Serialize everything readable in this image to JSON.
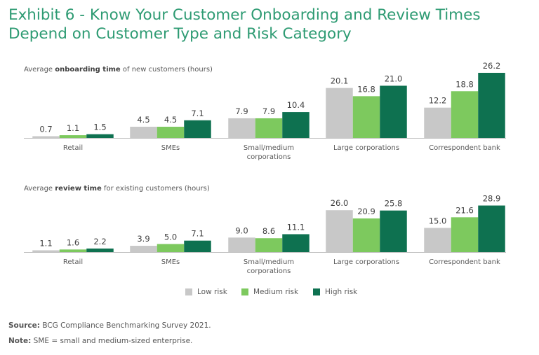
{
  "title": {
    "line1": "Exhibit 6 - Know Your Customer Onboarding and Review Times",
    "line2": "Depend on Customer Type and Risk Category"
  },
  "colors": {
    "title": "#2e9b73",
    "low_risk": "#c8c8c8",
    "medium_risk": "#7dc95e",
    "high_risk": "#0e7150",
    "axis": "#c0c0c0",
    "text": "#595959"
  },
  "chart_data": [
    {
      "type": "bar",
      "subtitle_prefix": "Average ",
      "subtitle_bold": "onboarding time",
      "subtitle_suffix": " of new customers (hours)",
      "categories": [
        "Retail",
        "SMEs",
        "Small/medium corporations",
        "Large corporations",
        "Correspondent bank"
      ],
      "category_lines": [
        [
          "Retail"
        ],
        [
          "SMEs"
        ],
        [
          "Small/medium",
          "corporations"
        ],
        [
          "Large corporations"
        ],
        [
          "Correspondent bank"
        ]
      ],
      "series": [
        {
          "name": "Low risk",
          "values": [
            0.7,
            4.5,
            7.9,
            20.1,
            12.2
          ],
          "labels": [
            "0.7",
            "4.5",
            "7.9",
            "20.1",
            "12.2"
          ]
        },
        {
          "name": "Medium risk",
          "values": [
            1.1,
            4.5,
            7.9,
            16.8,
            18.8
          ],
          "labels": [
            "1.1",
            "4.5",
            "7.9",
            "16.8",
            "18.8"
          ]
        },
        {
          "name": "High risk",
          "values": [
            1.5,
            7.1,
            10.4,
            21.0,
            26.2
          ],
          "labels": [
            "1.5",
            "7.1",
            "10.4",
            "21.0",
            "26.2"
          ]
        }
      ],
      "ylim": [
        0,
        30
      ]
    },
    {
      "type": "bar",
      "subtitle_prefix": "Average ",
      "subtitle_bold": "review time",
      "subtitle_suffix": " for existing customers (hours)",
      "categories": [
        "Retail",
        "SMEs",
        "Small/medium corporations",
        "Large corporations",
        "Correspondent bank"
      ],
      "category_lines": [
        [
          "Retail"
        ],
        [
          "SMEs"
        ],
        [
          "Small/medium",
          "corporations"
        ],
        [
          "Large corporations"
        ],
        [
          "Correspondent bank"
        ]
      ],
      "series": [
        {
          "name": "Low risk",
          "values": [
            1.1,
            3.9,
            9.0,
            26.0,
            15.0
          ],
          "labels": [
            "1.1",
            "3.9",
            "9.0",
            "26.0",
            "15.0"
          ]
        },
        {
          "name": "Medium risk",
          "values": [
            1.6,
            5.0,
            8.6,
            20.9,
            21.6
          ],
          "labels": [
            "1.6",
            "5.0",
            "8.6",
            "20.9",
            "21.6"
          ]
        },
        {
          "name": "High risk",
          "values": [
            2.2,
            7.1,
            11.1,
            25.8,
            28.9
          ],
          "labels": [
            "2.2",
            "7.1",
            "11.1",
            "25.8",
            "28.9"
          ]
        }
      ],
      "ylim": [
        0,
        30
      ]
    }
  ],
  "legend": {
    "items": [
      "Low risk",
      "Medium risk",
      "High risk"
    ]
  },
  "footnotes": {
    "source_label": "Source:",
    "source_text": " BCG Compliance Benchmarking Survey 2021.",
    "note_label": "Note:",
    "note_text": " SME = small and medium-sized enterprise."
  }
}
